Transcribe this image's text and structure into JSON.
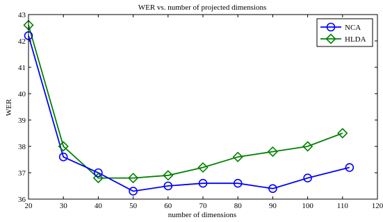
{
  "chart_data": {
    "type": "line",
    "title": "WER vs. number of projected dimensions",
    "xlabel": "number of dimensions",
    "ylabel": "WER",
    "xlim": [
      20,
      120
    ],
    "ylim": [
      36,
      43
    ],
    "xticks": [
      20,
      30,
      40,
      50,
      60,
      70,
      80,
      90,
      100,
      110,
      120
    ],
    "yticks": [
      36,
      37,
      38,
      39,
      40,
      41,
      42,
      43
    ],
    "grid": false,
    "legend_position": "top-right",
    "series": [
      {
        "name": "NCA",
        "color": "#0000ff",
        "marker": "circle",
        "x": [
          20,
          30,
          40,
          50,
          60,
          70,
          80,
          90,
          100,
          112
        ],
        "y": [
          42.2,
          37.6,
          37.0,
          36.3,
          36.5,
          36.6,
          36.6,
          36.4,
          36.8,
          37.2
        ]
      },
      {
        "name": "HLDA",
        "color": "#008000",
        "marker": "diamond",
        "x": [
          20,
          30,
          40,
          50,
          60,
          70,
          80,
          90,
          100,
          110
        ],
        "y": [
          42.6,
          38.0,
          36.8,
          36.8,
          36.9,
          37.2,
          37.6,
          37.8,
          38.0,
          38.5
        ]
      }
    ]
  }
}
